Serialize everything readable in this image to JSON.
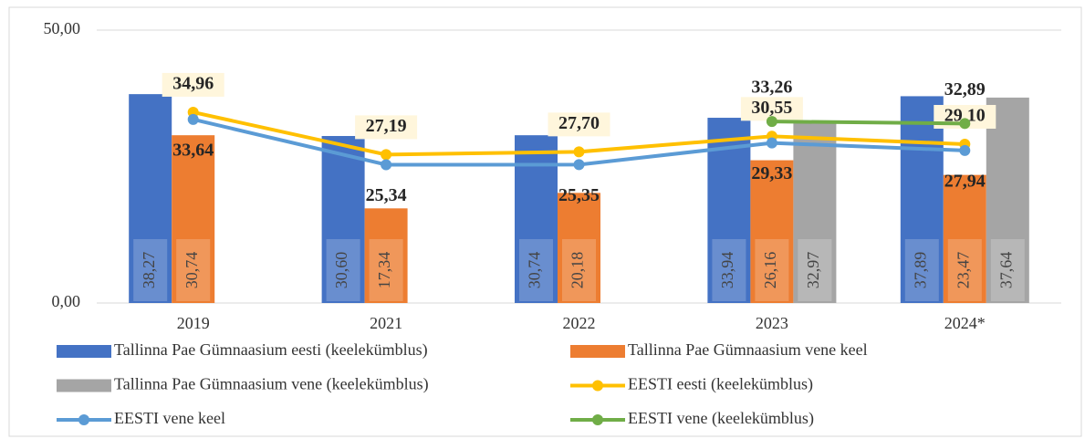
{
  "chart_data": {
    "type": "bar",
    "categories": [
      "2019",
      "2021",
      "2022",
      "2023",
      "2024*"
    ],
    "series": [
      {
        "name": "Tallinna Pae Gümnaasium eesti (keelekümblus)",
        "type": "bar",
        "color": "#4472c4",
        "values": [
          38.27,
          30.6,
          30.74,
          33.94,
          37.89
        ],
        "value_labels": [
          "38,27",
          "30,60",
          "30,74",
          "33,94",
          "37,89"
        ]
      },
      {
        "name": "Tallinna Pae Gümnaasium vene keel",
        "type": "bar",
        "color": "#ed7d31",
        "values": [
          30.74,
          17.34,
          20.18,
          26.16,
          23.47
        ],
        "value_labels": [
          "30,74",
          "17,34",
          "20,18",
          "26,16",
          "23,47"
        ]
      },
      {
        "name": "Tallinna Pae Gümnaasium vene (keelekümblus)",
        "type": "bar",
        "color": "#a5a5a5",
        "values": [
          null,
          null,
          null,
          32.97,
          37.64
        ],
        "value_labels": [
          null,
          null,
          null,
          "32,97",
          "37,64"
        ]
      },
      {
        "name": "EESTI eesti (keelekümblus)",
        "type": "line",
        "color": "#ffc000",
        "values": [
          34.96,
          27.19,
          27.7,
          30.55,
          29.1
        ],
        "value_labels": [
          "34,96",
          "27,19",
          "27,70",
          "30,55",
          "29,10"
        ]
      },
      {
        "name": "EESTI vene keel",
        "type": "line",
        "color": "#5b9bd5",
        "values": [
          33.64,
          25.34,
          25.35,
          29.33,
          27.94
        ],
        "value_labels": [
          "33,64",
          "25,34",
          "25,35",
          "29,33",
          "27,94"
        ]
      },
      {
        "name": "EESTI vene (keelekümblus)",
        "type": "line",
        "color": "#70ad47",
        "values": [
          null,
          null,
          null,
          33.26,
          32.89
        ],
        "value_labels": [
          null,
          null,
          null,
          "33,26",
          "32,89"
        ]
      }
    ],
    "ylim": [
      0,
      50
    ],
    "yticks": [
      {
        "value": 0,
        "label": "0,00"
      },
      {
        "value": 50,
        "label": "50,00"
      }
    ],
    "grid": true
  }
}
